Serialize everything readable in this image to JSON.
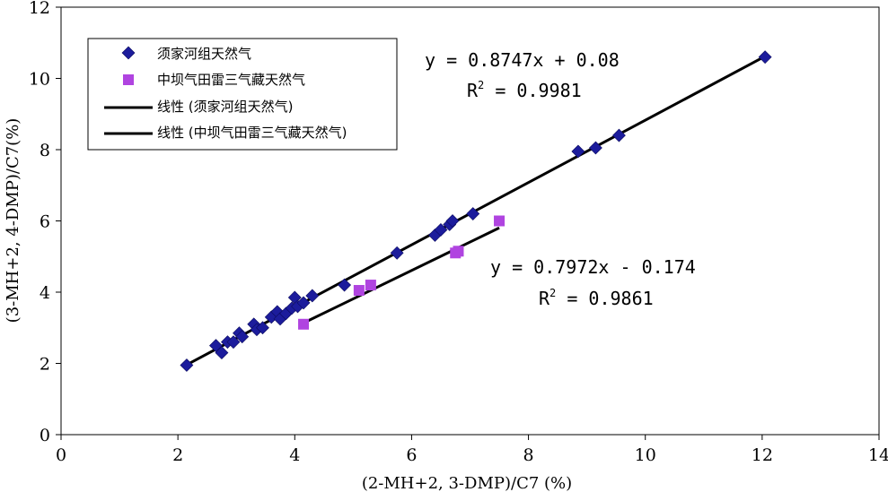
{
  "chart_data": {
    "type": "scatter",
    "xlabel": "(2-MH+2, 3-DMP)/C7 (%)",
    "ylabel": "(3-MH+2, 4-DMP)/C7(%)",
    "xlim": [
      0,
      14
    ],
    "ylim": [
      0,
      12
    ],
    "x_ticks": [
      0,
      2,
      4,
      6,
      8,
      10,
      12,
      14
    ],
    "y_ticks": [
      0,
      2,
      4,
      6,
      8,
      10,
      12
    ],
    "grid": false,
    "legend_position": "top-left",
    "series": [
      {
        "name": "须家河组天然气",
        "marker": "diamond",
        "color": "#1c1c9c",
        "x": [
          2.15,
          2.65,
          2.75,
          2.85,
          2.95,
          3.05,
          3.1,
          3.3,
          3.35,
          3.45,
          3.6,
          3.7,
          3.75,
          3.85,
          3.95,
          4.0,
          4.05,
          4.15,
          4.3,
          4.85,
          5.75,
          6.4,
          6.5,
          6.65,
          6.7,
          7.05,
          8.85,
          9.15,
          9.55,
          12.05
        ],
        "y": [
          1.95,
          2.5,
          2.3,
          2.6,
          2.6,
          2.85,
          2.75,
          3.1,
          2.95,
          3.0,
          3.3,
          3.45,
          3.25,
          3.4,
          3.55,
          3.85,
          3.6,
          3.7,
          3.9,
          4.2,
          5.1,
          5.6,
          5.75,
          5.9,
          6.0,
          6.2,
          7.95,
          8.05,
          8.4,
          10.6
        ]
      },
      {
        "name": "中坝气田雷三气藏天然气",
        "marker": "square",
        "color": "#b044e0",
        "x": [
          4.15,
          5.1,
          5.3,
          6.75,
          6.8,
          7.5
        ],
        "y": [
          3.1,
          4.05,
          4.2,
          5.1,
          5.15,
          6.0
        ]
      }
    ],
    "trendlines": [
      {
        "name": "线性（须家河组天然气）",
        "slope": 0.8747,
        "intercept": 0.08,
        "x_range": [
          2.15,
          12.05
        ],
        "equation": "y = 0.8747x + 0.08",
        "r2_label": "R",
        "r2_value": " = 0.9981"
      },
      {
        "name": "线性（中坝气田雷三气藏天然气）",
        "slope": 0.7972,
        "intercept": -0.174,
        "x_range": [
          4.15,
          7.5
        ],
        "equation": "y = 0.7972x - 0.174",
        "r2_label": "R",
        "r2_value": " = 0.9861"
      }
    ]
  },
  "legend": {
    "items": [
      {
        "label": "须家河组天然气",
        "icon": "diamond-marker"
      },
      {
        "label": "中坝气田雷三气藏天然气",
        "icon": "square-marker"
      },
      {
        "label": "线性 (须家河组天然气)",
        "icon": "line"
      },
      {
        "label": "线性 (中坝气田雷三气藏天然气)",
        "icon": "line"
      }
    ]
  },
  "r2_exponent": "2"
}
